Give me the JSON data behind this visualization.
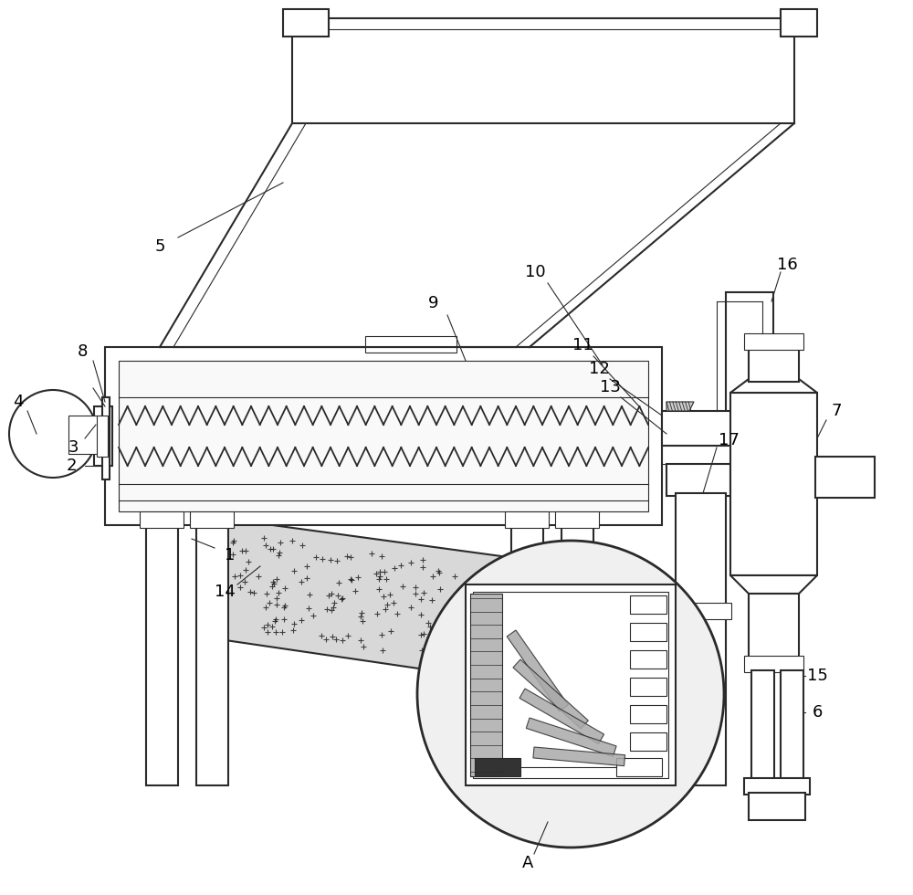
{
  "bg_color": "#ffffff",
  "lc": "#2a2a2a",
  "lw": 1.5,
  "tlw": 0.8,
  "fs": 13,
  "figsize": [
    10.0,
    9.8
  ],
  "dpi": 100
}
